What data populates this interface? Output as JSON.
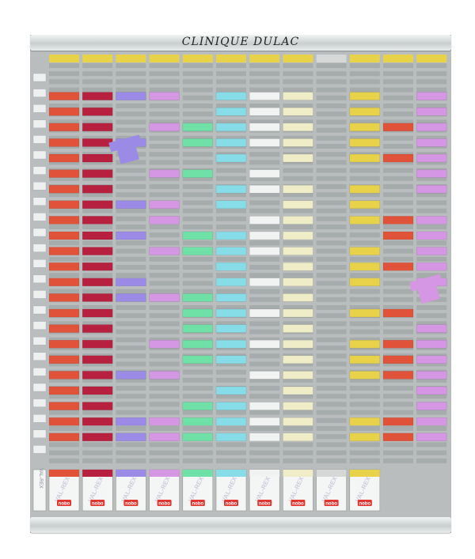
{
  "board_title": "CLINIQUE DULAC",
  "label_column": "VAL-REX",
  "brand": "nobo",
  "column_label": "VAL-REX",
  "colors": {
    "board": "#b9bdbd",
    "slot": "#a6abab",
    "yellow": "#e8d24a",
    "orange": "#e0533a",
    "red": "#b8203f",
    "purple": "#9b8ae6",
    "pink": "#d596e3",
    "green": "#6fe0a6",
    "cyan": "#86dde8",
    "white": "#f1f3f3",
    "cream": "#efedc8",
    "gray": "#d6d8d8"
  },
  "columns": [
    {
      "header": "yellow",
      "base": "orange",
      "cards": [
        1,
        2,
        3,
        4,
        5,
        6,
        7,
        8,
        9,
        10,
        11,
        12,
        13,
        14,
        15,
        16,
        17,
        18,
        19,
        20,
        21,
        22,
        23
      ]
    },
    {
      "header": "yellow",
      "base": "red",
      "cards": [
        1,
        2,
        3,
        4,
        5,
        6,
        7,
        8,
        9,
        10,
        11,
        12,
        13,
        14,
        15,
        16,
        17,
        18,
        19,
        20,
        21,
        22,
        23
      ]
    },
    {
      "header": "yellow",
      "base": "purple",
      "cards": [
        1,
        4,
        8,
        10,
        13,
        14,
        19,
        22,
        23
      ]
    },
    {
      "header": "yellow",
      "base": "pink",
      "cards": [
        1,
        3,
        6,
        8,
        9,
        11,
        14,
        17,
        19,
        22,
        23
      ]
    },
    {
      "header": "yellow",
      "base": "green",
      "cards": [
        3,
        4,
        6,
        10,
        11,
        14,
        15,
        16,
        17,
        18,
        21,
        22,
        23
      ]
    },
    {
      "header": "yellow",
      "base": "cyan",
      "cards": [
        1,
        2,
        3,
        4,
        5,
        7,
        8,
        10,
        11,
        12,
        13,
        14,
        15,
        16,
        17,
        18,
        20,
        21,
        22,
        23
      ]
    },
    {
      "header": "yellow",
      "base": "white",
      "cards": [
        1,
        2,
        3,
        4,
        6,
        7,
        9,
        10,
        11,
        13,
        15,
        17,
        19,
        21,
        22,
        23
      ]
    },
    {
      "header": "yellow",
      "base": "cream",
      "cards": [
        1,
        2,
        3,
        4,
        5,
        7,
        8,
        9,
        10,
        11,
        12,
        13,
        14,
        15,
        16,
        17,
        18,
        19,
        20,
        21,
        22,
        23
      ]
    },
    {
      "header": "gray",
      "base": "gray",
      "cards": []
    },
    {
      "header": "yellow",
      "base": "yellow",
      "cards": [
        1,
        2,
        3,
        4,
        5,
        7,
        8,
        9,
        11,
        12,
        13,
        15,
        17,
        18,
        19,
        22,
        23
      ]
    },
    {
      "header": "yellow",
      "base": "orange",
      "cards": [
        3,
        5,
        9,
        10,
        12,
        15,
        17,
        18,
        19,
        22,
        23
      ]
    },
    {
      "header": "yellow",
      "base": "pink",
      "cards": [
        1,
        2,
        3,
        4,
        5,
        6,
        7,
        9,
        10,
        11,
        12,
        13,
        16,
        17,
        18,
        19,
        20,
        21,
        22,
        23
      ]
    }
  ],
  "loose_cards": [
    {
      "color": "purple",
      "column": 2,
      "row": 5
    },
    {
      "color": "pink",
      "column": 11,
      "row": 14
    }
  ],
  "boxes": [
    "orange",
    "red",
    "purple",
    "pink",
    "green",
    "cyan",
    "white",
    "cream",
    "gray",
    "yellow"
  ]
}
